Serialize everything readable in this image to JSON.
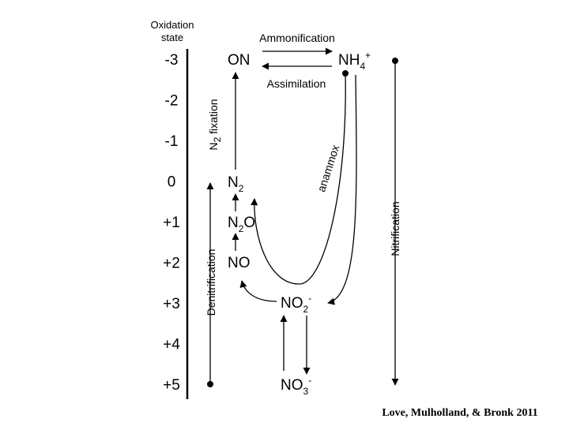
{
  "axis": {
    "title": [
      "Oxidation",
      "state"
    ],
    "levels": [
      "-3",
      "-2",
      "-1",
      "0",
      "+1",
      "+2",
      "+3",
      "+4",
      "+5"
    ]
  },
  "species": [
    {
      "base": "ON"
    },
    {
      "base": "NH",
      "sub": "4",
      "sup": "+"
    },
    {
      "base": "N",
      "sub": "2"
    },
    {
      "base": "N",
      "sub": "2",
      "tail": "O"
    },
    {
      "base": "NO"
    },
    {
      "base": "NO",
      "sub": "2",
      "sup": "-"
    },
    {
      "base": "NO",
      "sub": "3",
      "sup": "-"
    }
  ],
  "processes": {
    "ammonification": "Ammonification",
    "assimilation": "Assimilation",
    "fixation": {
      "base": "N",
      "sub": "2",
      "tail": " fixation"
    },
    "anammox": "anammox",
    "denitrification": "Denitrification",
    "nitrification": "Nitrification"
  },
  "citation": "Love, Mulholland, & Bronk 2011"
}
